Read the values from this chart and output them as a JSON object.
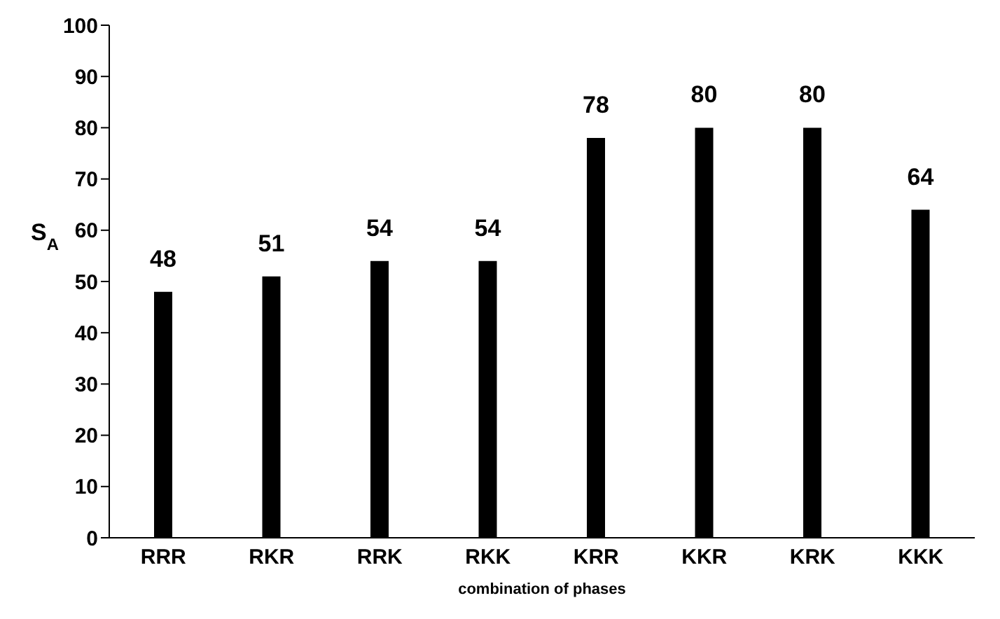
{
  "chart_data": {
    "type": "bar",
    "xlabel": "combination of phases",
    "ylabel": "S$_{A}$",
    "categories": [
      "RRR",
      "RKR",
      "RRK",
      "RKK",
      "KRR",
      "KKR",
      "KRK",
      "KKK"
    ],
    "values": [
      48,
      51,
      54,
      54,
      78,
      80,
      80,
      64
    ],
    "color": "#000000",
    "ylim": [
      0,
      100
    ],
    "yticks": [
      0,
      10,
      20,
      30,
      40,
      50,
      60,
      70,
      80,
      90,
      100
    ],
    "data_labels": true
  }
}
